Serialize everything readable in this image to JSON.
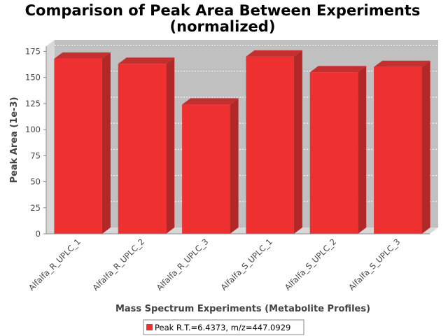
{
  "chart_data": {
    "type": "bar",
    "style": "3d",
    "title": "Comparison of Peak Area Between Experiments",
    "subtitle": "(normalized)",
    "xlabel": "Mass Spectrum Experiments (Metabolite Profiles)",
    "ylabel": "Peak Area (1e-3)",
    "ylim": [
      0,
      180
    ],
    "yticks": [
      0,
      25,
      50,
      75,
      100,
      125,
      150,
      175
    ],
    "grid": true,
    "legend_position": "bottom",
    "categories": [
      "Alfalfa_R_UPLC_1",
      "Alfalfa_R_UPLC_2",
      "Alfalfa_R_UPLC_3",
      "Alfalfa_S_UPLC_1",
      "Alfalfa_S_UPLC_2",
      "Alfalfa_S_UPLC_3"
    ],
    "series": [
      {
        "name": "Peak R.T.=6.4373, m/z=447.0929",
        "color": "#ee3030",
        "values": [
          168,
          163,
          124,
          170,
          155,
          160
        ]
      }
    ],
    "colors": {
      "plot_background": "#c0c0c0",
      "wall_side": "#d8d8d8",
      "bar_front": "#ee3030",
      "bar_top": "#c43030",
      "bar_side": "#b02828"
    }
  }
}
